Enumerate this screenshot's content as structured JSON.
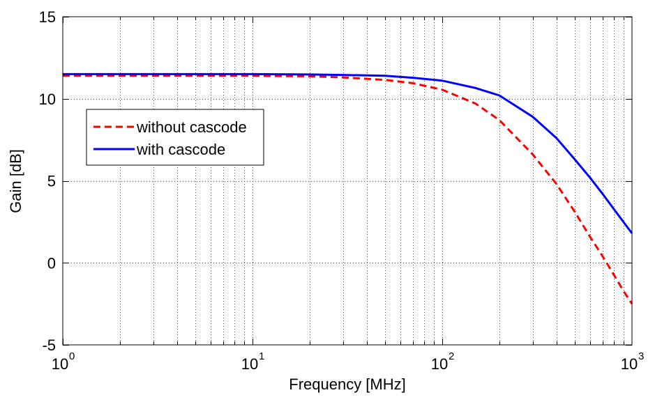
{
  "chart_data": {
    "type": "line",
    "xlabel": "Frequency [MHz]",
    "ylabel": "Gain [dB]",
    "xscale": "log",
    "xlim": [
      1,
      1000
    ],
    "ylim": [
      -5,
      15
    ],
    "grid": true,
    "legend_position": "upper-left",
    "x_ticks": [
      {
        "base": "10",
        "exp": "0",
        "value": 1
      },
      {
        "base": "10",
        "exp": "1",
        "value": 10
      },
      {
        "base": "10",
        "exp": "2",
        "value": 100
      },
      {
        "base": "10",
        "exp": "3",
        "value": 1000
      }
    ],
    "y_ticks": [
      {
        "label": "-5",
        "value": -5
      },
      {
        "label": "0",
        "value": 0
      },
      {
        "label": "5",
        "value": 5
      },
      {
        "label": "10",
        "value": 10
      },
      {
        "label": "15",
        "value": 15
      }
    ],
    "series": [
      {
        "name": "without cascode",
        "color": "#ff0000",
        "style": "dashed",
        "x": [
          1,
          2,
          5,
          10,
          20,
          30,
          50,
          70,
          100,
          150,
          200,
          300,
          400,
          500,
          600,
          700,
          800,
          900,
          1000
        ],
        "y": [
          11.4,
          11.4,
          11.4,
          11.4,
          11.37,
          11.3,
          11.15,
          10.95,
          10.55,
          9.7,
          8.7,
          6.6,
          4.8,
          3.1,
          1.6,
          0.4,
          -0.7,
          -1.7,
          -2.5
        ]
      },
      {
        "name": "with cascode",
        "color": "#0000ff",
        "style": "solid",
        "x": [
          1,
          2,
          5,
          10,
          20,
          30,
          50,
          70,
          100,
          150,
          200,
          300,
          400,
          500,
          600,
          700,
          800,
          900,
          1000
        ],
        "y": [
          11.5,
          11.5,
          11.5,
          11.5,
          11.48,
          11.45,
          11.4,
          11.28,
          11.1,
          10.65,
          10.2,
          8.9,
          7.6,
          6.3,
          5.2,
          4.2,
          3.3,
          2.5,
          1.8
        ]
      }
    ]
  }
}
